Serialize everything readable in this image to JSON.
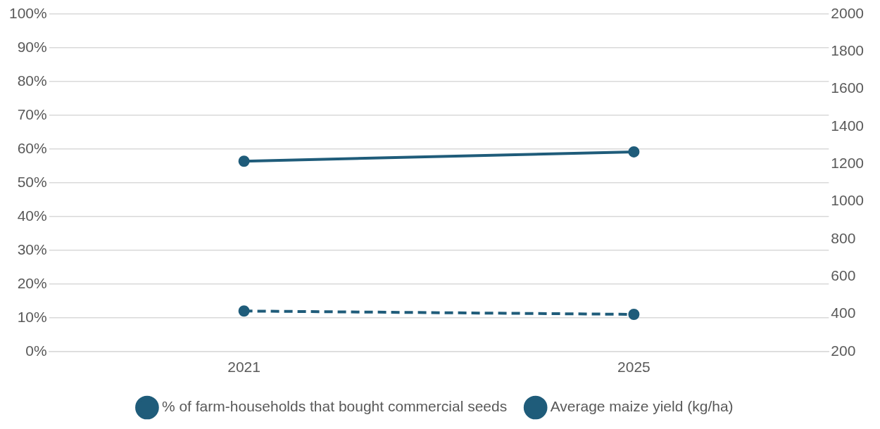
{
  "chart_data": {
    "type": "line",
    "categories": [
      "2021",
      "2025"
    ],
    "series": [
      {
        "name": "% of farm-households that bought commercial seeds",
        "color": "#1f5c7a",
        "values": [
          12,
          11
        ],
        "line_style": "dashed"
      },
      {
        "name": "Average maize yield (kg/ha)",
        "color": "#1f5c7a",
        "values": [
          1215,
          1265
        ],
        "axis": "y2",
        "line_style": "solid"
      }
    ],
    "ylim": [
      0,
      100
    ],
    "yticks": [
      {
        "value": 0,
        "label": "0%"
      },
      {
        "value": 10,
        "label": "10%"
      },
      {
        "value": 20,
        "label": "20%"
      },
      {
        "value": 30,
        "label": "30%"
      },
      {
        "value": 40,
        "label": "40%"
      },
      {
        "value": 50,
        "label": "50%"
      },
      {
        "value": 60,
        "label": "60%"
      },
      {
        "value": 70,
        "label": "70%"
      },
      {
        "value": 80,
        "label": "80%"
      },
      {
        "value": 90,
        "label": "90%"
      },
      {
        "value": 100,
        "label": "100%"
      }
    ],
    "y2lim": [
      200,
      2000
    ],
    "y2ticks": [
      200,
      400,
      600,
      800,
      1000,
      1200,
      1400,
      1600,
      1800,
      2000
    ],
    "grid": "y",
    "legend": "bottom",
    "marker": "circle"
  }
}
